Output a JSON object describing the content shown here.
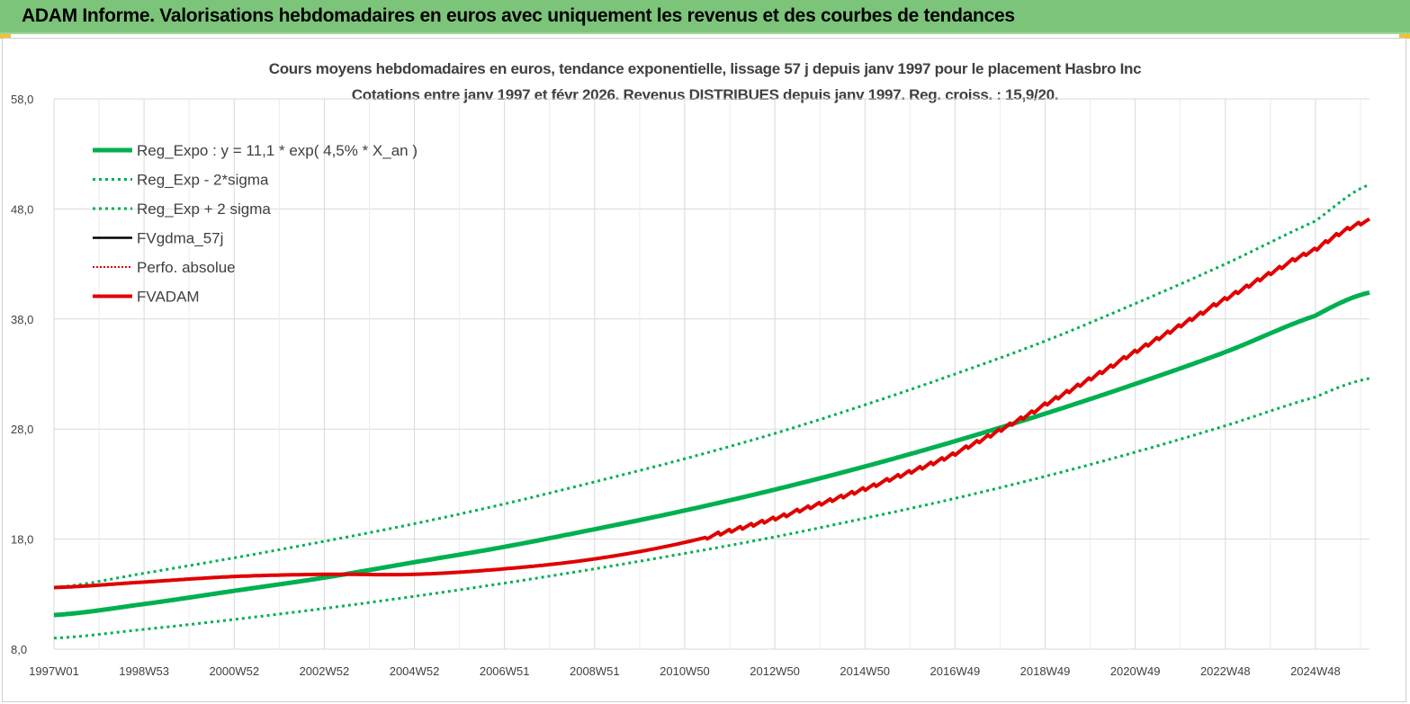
{
  "report_title": "ADAM Informe. Valorisations hebdomadaires en euros avec uniquement les revenus et des courbes de tendances",
  "chart_data": {
    "type": "line",
    "title": "Cours moyens hebdomadaires en euros, tendance exponentielle, lissage 57 j depuis janv 1997 pour le placement Hasbro Inc",
    "subtitle": "Cotations entre janv 1997 et févr 2026. Revenus DISTRIBUES depuis janv 1997. Reg. croiss. : 15,9/20.",
    "xlabel": "",
    "ylabel": "",
    "x_range": [
      1997.0,
      2026.2
    ],
    "ylim": [
      8,
      58
    ],
    "y_ticks": [
      "58,0",
      "48,0",
      "38,0",
      "28,0",
      "18,0",
      "8,0"
    ],
    "y_tick_values": [
      58,
      48,
      38,
      28,
      18,
      8
    ],
    "x_tick_labels": [
      "1997W01",
      "1998W53",
      "2000W52",
      "2002W52",
      "2004W52",
      "2006W51",
      "2008W51",
      "2010W50",
      "2012W50",
      "2014W50",
      "2016W49",
      "2018W49",
      "2020W49",
      "2022W48",
      "2024W48"
    ],
    "x_tick_values": [
      1997.0,
      1999.0,
      2001.0,
      2003.0,
      2005.0,
      2007.0,
      2009.0,
      2011.0,
      2013.0,
      2015.0,
      2017.0,
      2019.0,
      2021.0,
      2023.0,
      2025.0
    ],
    "grid": true,
    "legend_position": "top-left",
    "series": [
      {
        "name": "Reg_Expo : y = 11,1 * exp( 4,5% *  X_an )",
        "color": "#00b050",
        "style": "solid-thick",
        "x": [
          1997,
          1999,
          2001,
          2003,
          2005,
          2007,
          2009,
          2011,
          2013,
          2015,
          2017,
          2019,
          2021,
          2023,
          2025,
          2026.2
        ],
        "y": [
          11.1,
          12.1,
          13.3,
          14.5,
          15.9,
          17.3,
          18.9,
          20.6,
          22.5,
          24.6,
          26.9,
          29.4,
          32.1,
          35.0,
          38.3,
          40.4
        ]
      },
      {
        "name": "Reg_Exp - 2*sigma",
        "color": "#00b050",
        "style": "dotted",
        "x": [
          1997,
          1999,
          2001,
          2003,
          2005,
          2007,
          2009,
          2011,
          2013,
          2015,
          2017,
          2019,
          2021,
          2023,
          2025,
          2026.2
        ],
        "y": [
          9.0,
          9.8,
          10.7,
          11.7,
          12.8,
          14.0,
          15.3,
          16.7,
          18.2,
          19.9,
          21.7,
          23.7,
          25.9,
          28.3,
          30.9,
          32.6
        ]
      },
      {
        "name": "Reg_Exp + 2 sigma",
        "color": "#00b050",
        "style": "dotted",
        "x": [
          1997,
          1999,
          2001,
          2003,
          2005,
          2007,
          2009,
          2011,
          2013,
          2015,
          2017,
          2019,
          2021,
          2023,
          2025,
          2026.2
        ],
        "y": [
          13.6,
          14.9,
          16.3,
          17.8,
          19.4,
          21.2,
          23.2,
          25.3,
          27.6,
          30.2,
          33.0,
          36.0,
          39.4,
          43.0,
          46.9,
          50.2
        ]
      },
      {
        "name": "FVgdma_57j",
        "color": "#000000",
        "style": "solid",
        "x": [],
        "y": []
      },
      {
        "name": "Perfo. absolue",
        "color": "#e00000",
        "style": "dotted-thin",
        "x": [],
        "y": []
      },
      {
        "name": "FVADAM",
        "color": "#e00000",
        "style": "solid-thick-wavy",
        "x": [
          1997,
          1999,
          2001,
          2003,
          2005,
          2007,
          2009,
          2011,
          2013,
          2015,
          2017,
          2019,
          2021,
          2023,
          2025,
          2026.2
        ],
        "y": [
          13.6,
          14.1,
          14.6,
          14.8,
          14.8,
          15.3,
          16.2,
          17.7,
          19.9,
          22.6,
          25.8,
          30.2,
          35.0,
          39.8,
          44.3,
          47.0
        ]
      }
    ]
  }
}
